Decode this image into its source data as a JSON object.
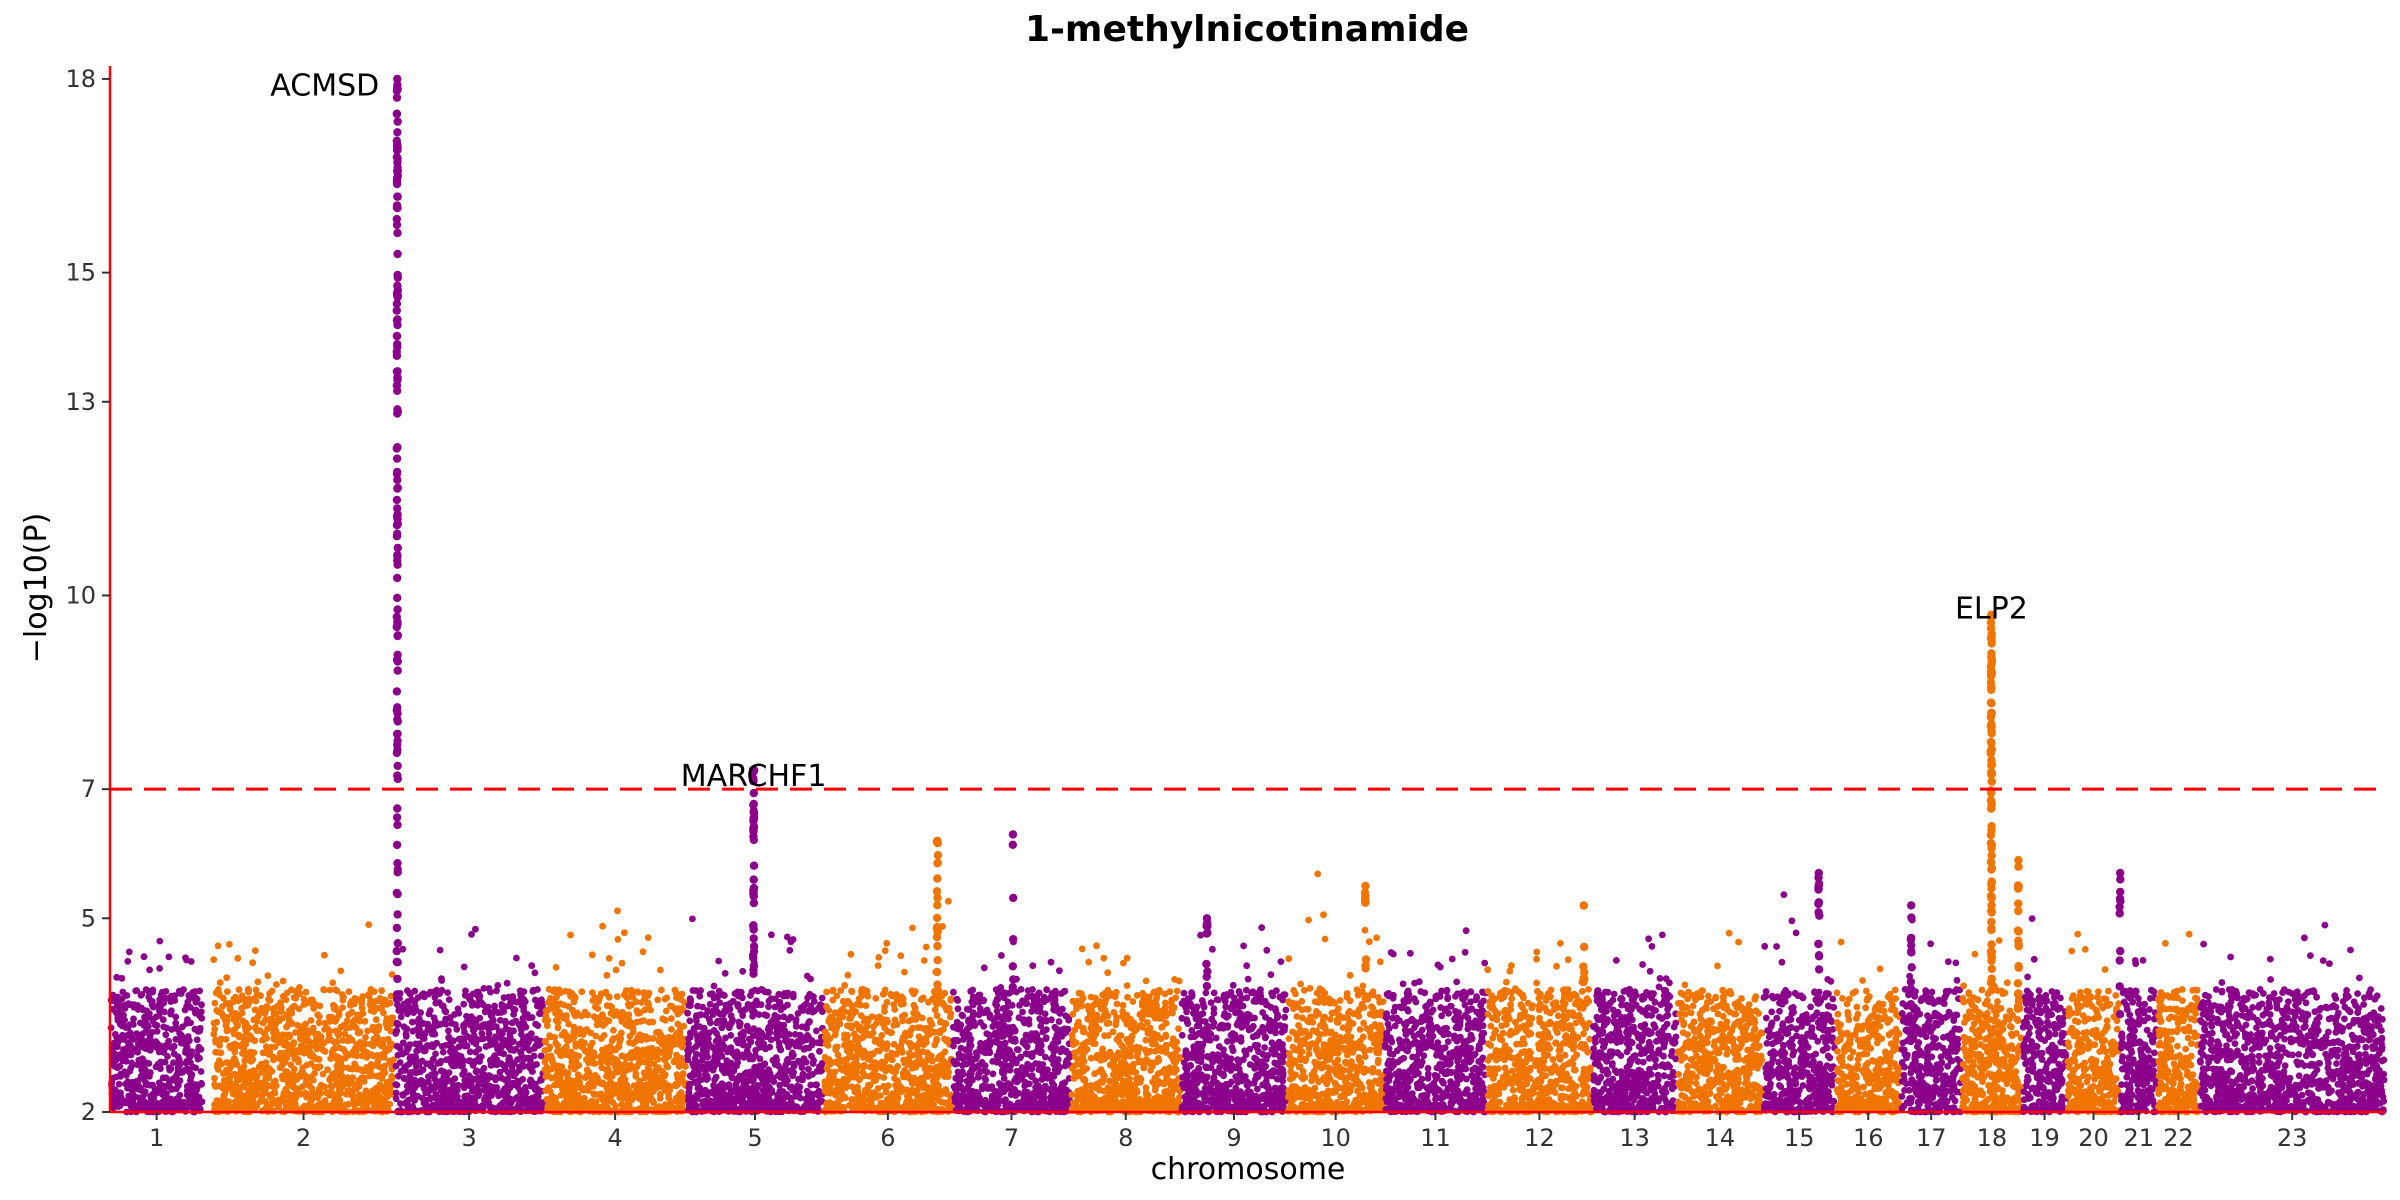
{
  "chart_data": {
    "type": "scatter",
    "title": "1-methylnicotinamide",
    "xlabel": "chromosome",
    "ylabel": "−log10(P)",
    "ylim": [
      2,
      18.2
    ],
    "y_ticks": [
      2,
      5,
      7,
      10,
      13,
      15,
      18
    ],
    "grid": false,
    "colors": {
      "odd": "#8b008b",
      "even": "#ef7400",
      "axis": "#ff0000",
      "threshold": "#ff0000"
    },
    "significance_threshold": 7,
    "chromosomes": [
      {
        "label": "1",
        "start": 0,
        "end": 100
      },
      {
        "label": "2",
        "start": 110,
        "end": 305
      },
      {
        "label": "3",
        "start": 305,
        "end": 465
      },
      {
        "label": "4",
        "start": 465,
        "end": 618
      },
      {
        "label": "5",
        "start": 618,
        "end": 765
      },
      {
        "label": "6",
        "start": 765,
        "end": 903
      },
      {
        "label": "7",
        "start": 903,
        "end": 1030
      },
      {
        "label": "8",
        "start": 1030,
        "end": 1148
      },
      {
        "label": "9",
        "start": 1148,
        "end": 1262
      },
      {
        "label": "10",
        "start": 1262,
        "end": 1366
      },
      {
        "label": "11",
        "start": 1366,
        "end": 1476
      },
      {
        "label": "12",
        "start": 1476,
        "end": 1589
      },
      {
        "label": "13",
        "start": 1589,
        "end": 1680
      },
      {
        "label": "14",
        "start": 1680,
        "end": 1772
      },
      {
        "label": "15",
        "start": 1772,
        "end": 1850
      },
      {
        "label": "16",
        "start": 1850,
        "end": 1920
      },
      {
        "label": "17",
        "start": 1920,
        "end": 1985
      },
      {
        "label": "18",
        "start": 1985,
        "end": 2050
      },
      {
        "label": "19",
        "start": 2050,
        "end": 2098
      },
      {
        "label": "20",
        "start": 2098,
        "end": 2155
      },
      {
        "label": "21",
        "start": 2155,
        "end": 2195
      },
      {
        "label": "22",
        "start": 2195,
        "end": 2240
      },
      {
        "label": "23",
        "start": 2240,
        "end": 2439
      }
    ],
    "peaks": [
      {
        "pos": 308,
        "max": 18.0,
        "n": 140
      },
      {
        "pos": 690,
        "max": 7.3,
        "n": 45
      },
      {
        "pos": 887,
        "max": 6.2,
        "n": 20
      },
      {
        "pos": 1346,
        "max": 5.5,
        "n": 10
      },
      {
        "pos": 1580,
        "max": 5.2,
        "n": 10
      },
      {
        "pos": 1832,
        "max": 5.7,
        "n": 16
      },
      {
        "pos": 1931,
        "max": 5.2,
        "n": 12
      },
      {
        "pos": 2017,
        "max": 9.7,
        "n": 95
      },
      {
        "pos": 2046,
        "max": 5.9,
        "n": 20
      },
      {
        "pos": 2155,
        "max": 5.7,
        "n": 10
      },
      {
        "pos": 1176,
        "max": 5.0,
        "n": 10
      },
      {
        "pos": 968,
        "max": 6.3,
        "n": 6
      }
    ],
    "annotations": [
      {
        "text": "ACMSD",
        "x": 308,
        "y": 17.9,
        "anchor": "end"
      },
      {
        "text": "MARCHF1",
        "x": 690,
        "y": 7.2,
        "anchor": "middle"
      },
      {
        "text": "ELP2",
        "x": 2017,
        "y": 9.8,
        "anchor": "middle"
      }
    ]
  }
}
